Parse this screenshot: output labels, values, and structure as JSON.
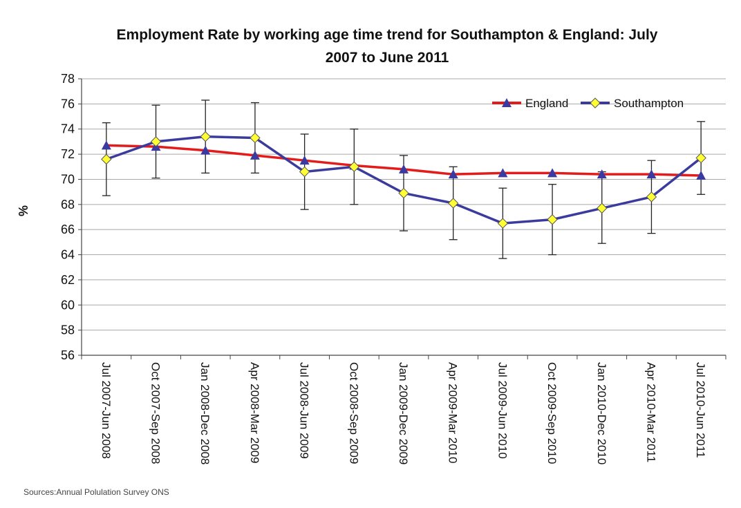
{
  "chart_data": {
    "type": "line",
    "title_lines": [
      "Employment Rate by working age time trend for Southampton & England: July",
      "2007 to June 2011"
    ],
    "ylabel": "%",
    "xlabel": "",
    "ylim": [
      56,
      78
    ],
    "yticks": [
      56,
      58,
      60,
      62,
      64,
      66,
      68,
      70,
      72,
      74,
      76,
      78
    ],
    "grid": "horizontal",
    "legend_position": "top-right",
    "categories": [
      "Jul 2007-Jun 2008",
      "Oct 2007-Sep 2008",
      "Jan 2008-Dec 2008",
      "Apr 2008-Mar 2009",
      "Jul 2008-Jun 2009",
      "Oct 2008-Sep 2009",
      "Jan 2009-Dec 2009",
      "Apr 2009-Mar 2010",
      "Jul 2009-Jun 2010",
      "Oct 2009-Sep 2010",
      "Jan 2010-Dec 2010",
      "Apr 2010-Mar 2011",
      "Jul 2010-Jun 2011"
    ],
    "series": [
      {
        "name": "England",
        "color": "#e31b1b",
        "marker_color": "#3a3aa0",
        "marker": "triangle",
        "values": [
          72.7,
          72.6,
          72.3,
          71.9,
          71.5,
          71.1,
          70.8,
          70.4,
          70.5,
          70.5,
          70.4,
          70.4,
          70.3
        ]
      },
      {
        "name": "Southampton",
        "color": "#3b3b9e",
        "marker_color": "#ffff33",
        "marker": "diamond",
        "values": [
          71.6,
          73.0,
          73.4,
          73.3,
          70.6,
          71.0,
          68.9,
          68.1,
          66.5,
          66.8,
          67.7,
          68.6,
          71.7
        ],
        "error_low": [
          68.7,
          70.1,
          70.5,
          70.5,
          67.6,
          68.0,
          65.9,
          65.2,
          63.7,
          64.0,
          64.9,
          65.7,
          68.8
        ],
        "error_high": [
          74.5,
          75.9,
          76.3,
          76.1,
          73.6,
          74.0,
          71.9,
          71.0,
          69.3,
          69.6,
          70.6,
          71.5,
          74.6
        ]
      }
    ]
  },
  "source_note": "Sources:Annual Polulation Survey ONS"
}
